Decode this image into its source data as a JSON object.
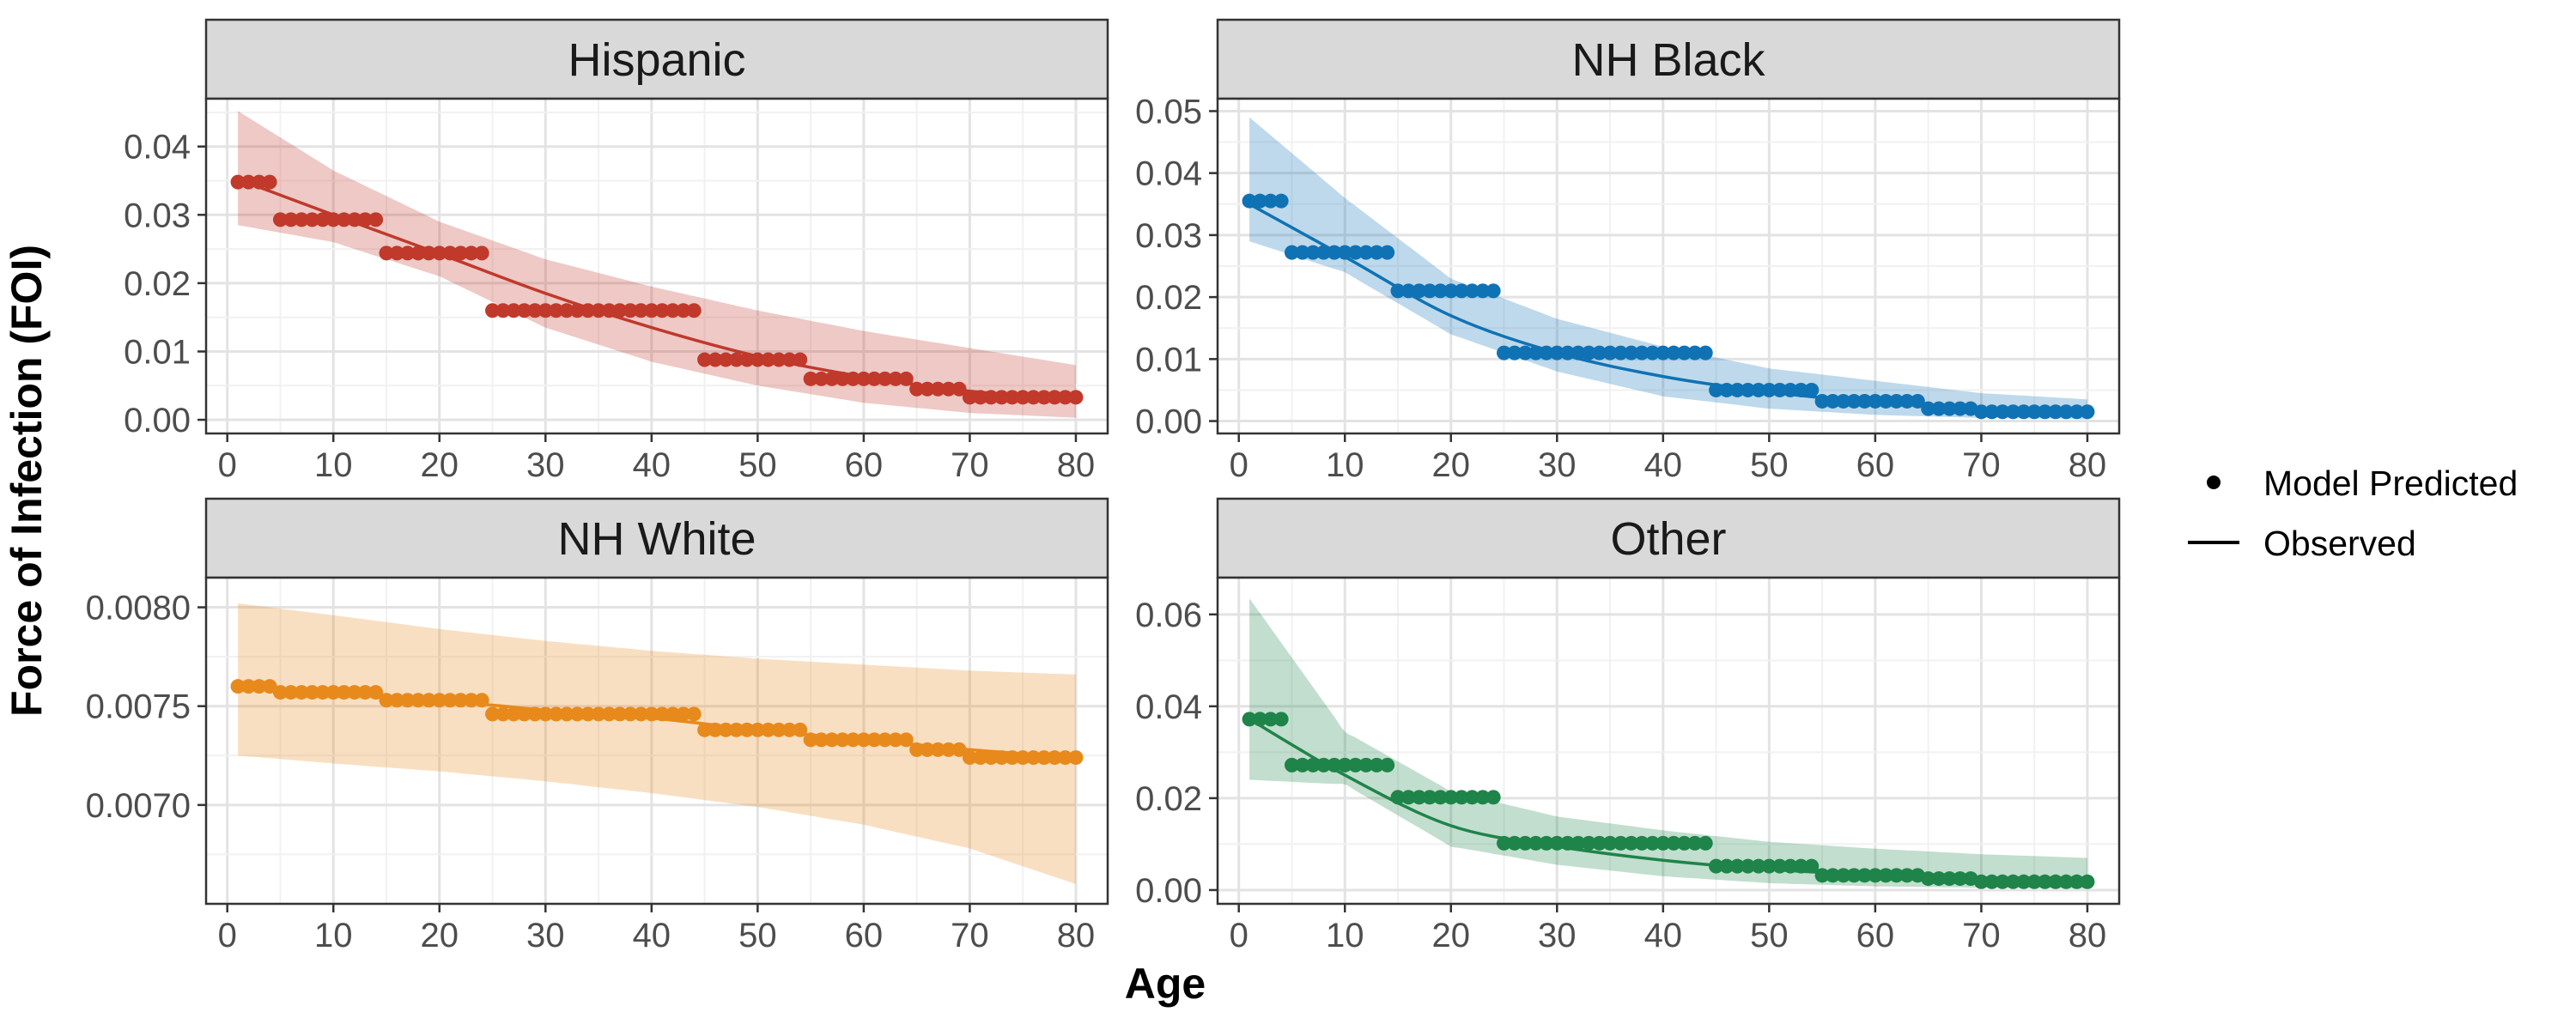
{
  "chart_data": {
    "type": "scatter",
    "layout": "facet-grid-2x2",
    "xlabel": "Age",
    "ylabel": "Force of Infection (FOI)",
    "xlim": [
      -2,
      83
    ],
    "xticks": [
      0,
      10,
      20,
      30,
      40,
      50,
      60,
      70,
      80
    ],
    "grid": true,
    "legend": {
      "placement": "right",
      "items": [
        {
          "label": "Model Predicted",
          "symbol": "point"
        },
        {
          "label": "Observed",
          "symbol": "line"
        }
      ]
    },
    "panels": [
      {
        "title": "Hispanic",
        "color": "#c0392b",
        "ylim": [
          -0.002,
          0.047
        ],
        "yticks": [
          0.0,
          0.01,
          0.02,
          0.03,
          0.04
        ],
        "ytick_labels": [
          "0.00",
          "0.01",
          "0.02",
          "0.03",
          "0.04"
        ],
        "predicted_steps": [
          {
            "from": 1,
            "to": 4,
            "value": 0.0348
          },
          {
            "from": 5,
            "to": 14,
            "value": 0.0293
          },
          {
            "from": 15,
            "to": 24,
            "value": 0.0244
          },
          {
            "from": 25,
            "to": 44,
            "value": 0.016
          },
          {
            "from": 45,
            "to": 54,
            "value": 0.0088
          },
          {
            "from": 55,
            "to": 64,
            "value": 0.006
          },
          {
            "from": 65,
            "to": 69,
            "value": 0.0045
          },
          {
            "from": 70,
            "to": 80,
            "value": 0.0033
          }
        ],
        "observed": {
          "x": [
            1,
            10,
            20,
            30,
            40,
            50,
            60,
            70,
            80
          ],
          "y": [
            0.0352,
            0.03,
            0.0243,
            0.0185,
            0.0135,
            0.0093,
            0.0063,
            0.0042,
            0.003
          ]
        },
        "band": {
          "x": [
            1,
            10,
            20,
            30,
            40,
            50,
            60,
            70,
            80
          ],
          "lower": [
            0.0285,
            0.026,
            0.021,
            0.0135,
            0.0085,
            0.005,
            0.0025,
            0.001,
            0.0003
          ],
          "upper": [
            0.0452,
            0.0365,
            0.029,
            0.0235,
            0.0195,
            0.016,
            0.013,
            0.0105,
            0.008
          ]
        }
      },
      {
        "title": "NH Black",
        "color": "#0f72b5",
        "ylim": [
          -0.002,
          0.052
        ],
        "yticks": [
          0.0,
          0.01,
          0.02,
          0.03,
          0.04,
          0.05
        ],
        "ytick_labels": [
          "0.00",
          "0.01",
          "0.02",
          "0.03",
          "0.04",
          "0.05"
        ],
        "predicted_steps": [
          {
            "from": 1,
            "to": 4,
            "value": 0.0355
          },
          {
            "from": 5,
            "to": 14,
            "value": 0.0272
          },
          {
            "from": 15,
            "to": 24,
            "value": 0.021
          },
          {
            "from": 25,
            "to": 44,
            "value": 0.011
          },
          {
            "from": 45,
            "to": 54,
            "value": 0.005
          },
          {
            "from": 55,
            "to": 64,
            "value": 0.0032
          },
          {
            "from": 65,
            "to": 69,
            "value": 0.002
          },
          {
            "from": 70,
            "to": 80,
            "value": 0.0015
          }
        ],
        "observed": {
          "x": [
            1,
            10,
            20,
            30,
            40,
            50,
            60,
            70,
            80
          ],
          "y": [
            0.035,
            0.0265,
            0.017,
            0.011,
            0.0072,
            0.0047,
            0.003,
            0.002,
            0.0013
          ]
        },
        "band": {
          "x": [
            1,
            10,
            20,
            30,
            40,
            50,
            60,
            70,
            80
          ],
          "lower": [
            0.029,
            0.024,
            0.014,
            0.008,
            0.004,
            0.002,
            0.001,
            0.0005,
            0.0003
          ],
          "upper": [
            0.049,
            0.036,
            0.023,
            0.0165,
            0.012,
            0.0085,
            0.0065,
            0.0045,
            0.0035
          ]
        }
      },
      {
        "title": "NH White",
        "color": "#e8891c",
        "ylim": [
          0.0065,
          0.00815
        ],
        "yticks": [
          0.007,
          0.0075,
          0.008
        ],
        "ytick_labels": [
          "0.0070",
          "0.0075",
          "0.0080"
        ],
        "predicted_steps": [
          {
            "from": 1,
            "to": 4,
            "value": 0.0076
          },
          {
            "from": 5,
            "to": 14,
            "value": 0.00757
          },
          {
            "from": 15,
            "to": 24,
            "value": 0.00753
          },
          {
            "from": 25,
            "to": 44,
            "value": 0.00746
          },
          {
            "from": 45,
            "to": 54,
            "value": 0.00738
          },
          {
            "from": 55,
            "to": 64,
            "value": 0.00733
          },
          {
            "from": 65,
            "to": 69,
            "value": 0.00728
          },
          {
            "from": 70,
            "to": 80,
            "value": 0.00724
          }
        ],
        "observed": {
          "x": [
            1,
            10,
            20,
            30,
            40,
            50,
            60,
            70,
            80
          ],
          "y": [
            0.0076,
            0.00757,
            0.00753,
            0.00748,
            0.00744,
            0.00738,
            0.00733,
            0.00728,
            0.00724
          ]
        },
        "band": {
          "x": [
            1,
            10,
            20,
            30,
            40,
            50,
            60,
            70,
            80
          ],
          "lower": [
            0.00725,
            0.00721,
            0.00717,
            0.00712,
            0.00706,
            0.00699,
            0.0069,
            0.00678,
            0.0066
          ],
          "upper": [
            0.00802,
            0.00796,
            0.00789,
            0.00783,
            0.00778,
            0.00774,
            0.00771,
            0.00768,
            0.00766
          ]
        }
      },
      {
        "title": "Other",
        "color": "#1e8449",
        "ylim": [
          -0.003,
          0.068
        ],
        "yticks": [
          0.0,
          0.02,
          0.04,
          0.06
        ],
        "ytick_labels": [
          "0.00",
          "0.02",
          "0.04",
          "0.06"
        ],
        "predicted_steps": [
          {
            "from": 1,
            "to": 4,
            "value": 0.0372
          },
          {
            "from": 5,
            "to": 14,
            "value": 0.0272
          },
          {
            "from": 15,
            "to": 24,
            "value": 0.0202
          },
          {
            "from": 25,
            "to": 44,
            "value": 0.0102
          },
          {
            "from": 45,
            "to": 54,
            "value": 0.0052
          },
          {
            "from": 55,
            "to": 64,
            "value": 0.0032
          },
          {
            "from": 65,
            "to": 69,
            "value": 0.0025
          },
          {
            "from": 70,
            "to": 80,
            "value": 0.0018
          }
        ],
        "observed": {
          "x": [
            1,
            10,
            20,
            30,
            40,
            50,
            60,
            70,
            80
          ],
          "y": [
            0.0372,
            0.025,
            0.014,
            0.0095,
            0.0065,
            0.0045,
            0.0033,
            0.0025,
            0.0018
          ]
        },
        "band": {
          "x": [
            1,
            10,
            20,
            30,
            40,
            50,
            60,
            70,
            80
          ],
          "lower": [
            0.024,
            0.023,
            0.0095,
            0.0055,
            0.003,
            0.0015,
            0.0008,
            0.0005,
            0.0003
          ],
          "upper": [
            0.0635,
            0.0345,
            0.0215,
            0.016,
            0.013,
            0.0105,
            0.009,
            0.0078,
            0.007
          ]
        }
      }
    ]
  }
}
